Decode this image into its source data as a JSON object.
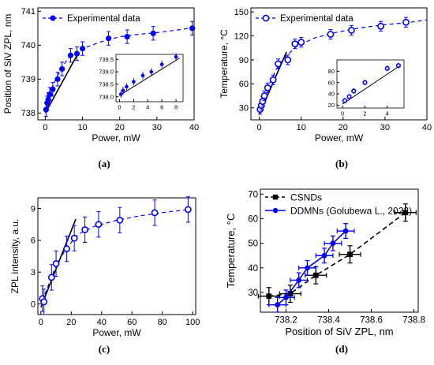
{
  "captions": {
    "a": "(a)",
    "b": "(b)",
    "c": "(c)",
    "d": "(d)"
  },
  "chart_data": [
    {
      "id": "a",
      "type": "scatter",
      "xlabel": "Power, mW",
      "ylabel": "Position of SiV ZPL, nm",
      "xlim": [
        -2,
        40
      ],
      "ylim": [
        737.8,
        741.1
      ],
      "xticks": [
        0,
        10,
        20,
        30,
        40
      ],
      "xtick_labels": [
        "0",
        "10",
        "20",
        "30",
        "40"
      ],
      "yticks": [
        738,
        739,
        740,
        741
      ],
      "ytick_labels": [
        "738",
        "739",
        "740",
        "741"
      ],
      "legend": {
        "label": "Experimental data",
        "position": "top-left"
      },
      "series": [
        {
          "name": "Experimental data",
          "color": "#0000ff",
          "marker": "filled-circle",
          "line": "dashed",
          "x": [
            0.2,
            0.5,
            0.8,
            1.2,
            2,
            3.3,
            4.5,
            6.8,
            8.5,
            10,
            17,
            22,
            29,
            39.5
          ],
          "y": [
            738.1,
            738.3,
            738.4,
            738.55,
            738.7,
            739.0,
            739.3,
            739.7,
            739.75,
            739.9,
            740.2,
            740.25,
            740.35,
            740.5
          ],
          "err": [
            0.2,
            0.2,
            0.2,
            0.2,
            0.2,
            0.2,
            0.2,
            0.2,
            0.2,
            0.2,
            0.2,
            0.2,
            0.2,
            0.2
          ]
        }
      ],
      "fit_line": {
        "color": "#000000",
        "x": [
          0,
          8.5
        ],
        "y": [
          738.0,
          739.7
        ]
      },
      "dashed_curve": {
        "x": [
          0.2,
          1,
          3,
          6,
          10,
          15,
          20,
          25,
          30,
          35,
          40
        ],
        "y": [
          738.1,
          738.5,
          739.05,
          739.6,
          739.9,
          740.1,
          740.25,
          740.32,
          740.37,
          740.44,
          740.52
        ]
      },
      "inset": {
        "xlim": [
          -0.5,
          9
        ],
        "ylim": [
          737.8,
          739.7
        ],
        "xticks": [
          0,
          2,
          4,
          6,
          8
        ],
        "xtick_labels": [
          "0",
          "2",
          "4",
          "6",
          "8"
        ],
        "yticks": [
          738.0,
          738.5,
          739.0,
          739.5
        ],
        "ytick_labels": [
          "738.0",
          "738.5",
          "739.0",
          "739.5"
        ],
        "x": [
          0.2,
          0.5,
          1,
          2,
          3.3,
          4.5,
          6,
          8
        ],
        "y": [
          738.1,
          738.25,
          738.4,
          738.6,
          738.85,
          739.0,
          739.3,
          739.6
        ],
        "err": [
          0.15,
          0.15,
          0.15,
          0.15,
          0.15,
          0.15,
          0.15,
          0.15
        ],
        "fit_line": {
          "x": [
            0,
            8.5
          ],
          "y": [
            738.05,
            739.55
          ]
        }
      }
    },
    {
      "id": "b",
      "type": "scatter",
      "xlabel": "Power, mW",
      "ylabel": "Temperature, °C",
      "xlim": [
        -2,
        40
      ],
      "ylim": [
        15,
        155
      ],
      "xticks": [
        0,
        10,
        20,
        30,
        40
      ],
      "xtick_labels": [
        "0",
        "10",
        "20",
        "30",
        "40"
      ],
      "yticks": [
        30,
        60,
        90,
        120,
        150
      ],
      "ytick_labels": [
        "30",
        "60",
        "90",
        "120",
        "150"
      ],
      "legend": {
        "label": "Experimental data",
        "position": "top-left"
      },
      "series": [
        {
          "name": "Experimental data",
          "color": "#0000ff",
          "marker": "open-circle",
          "line": "dashed",
          "x": [
            0.2,
            0.5,
            0.8,
            1.2,
            2,
            3.3,
            4.5,
            6.8,
            8.5,
            10,
            17,
            22,
            29,
            35
          ],
          "y": [
            28,
            33,
            38,
            45,
            55,
            65,
            85,
            90,
            110,
            112,
            122,
            127,
            132,
            137
          ],
          "err": [
            6,
            6,
            6,
            6,
            6,
            6,
            6,
            6,
            6,
            6,
            6,
            6,
            6,
            6
          ]
        }
      ],
      "fit_line": {
        "color": "#000000",
        "x": [
          0,
          6.5
        ],
        "y": [
          22,
          100
        ]
      },
      "dashed_curve": {
        "x": [
          0.2,
          2,
          4,
          6,
          9,
          13,
          18,
          24,
          30,
          36,
          40
        ],
        "y": [
          28,
          55,
          78,
          93,
          107,
          117,
          124,
          130,
          134,
          137,
          140
        ]
      },
      "inset": {
        "xlim": [
          -0.5,
          5.5
        ],
        "ylim": [
          15,
          100
        ],
        "xticks": [
          0,
          2,
          4
        ],
        "xtick_labels": [
          "0",
          "2",
          "4"
        ],
        "yticks": [
          20,
          40,
          60,
          80
        ],
        "ytick_labels": [
          "20",
          "40",
          "60",
          "80"
        ],
        "x": [
          0.2,
          0.6,
          1,
          2,
          4,
          5
        ],
        "y": [
          28,
          35,
          45,
          60,
          85,
          90
        ],
        "err": [
          5,
          5,
          5,
          5,
          5,
          5
        ],
        "fit_line": {
          "x": [
            0,
            5
          ],
          "y": [
            22,
            88
          ]
        }
      }
    },
    {
      "id": "c",
      "type": "scatter",
      "xlabel": "Power, mW",
      "ylabel": "ZPL intensity, a.u.",
      "xlim": [
        -2,
        102
      ],
      "ylim": [
        -1,
        10
      ],
      "xticks": [
        0,
        20,
        40,
        60,
        80,
        100
      ],
      "xtick_labels": [
        "0",
        "20",
        "40",
        "60",
        "80",
        "100"
      ],
      "yticks": [
        0,
        3,
        6,
        9
      ],
      "ytick_labels": [
        "0",
        "3",
        "6",
        "9"
      ],
      "series": [
        {
          "name": "",
          "color": "#0000ff",
          "marker": "open-circle",
          "line": "dashed",
          "x": [
            1,
            2,
            7,
            10,
            17,
            22,
            29,
            38,
            52,
            75,
            97
          ],
          "y": [
            0.5,
            0.2,
            2.5,
            3.8,
            5.2,
            6.2,
            7.0,
            7.5,
            7.9,
            8.6,
            8.9
          ],
          "err": [
            1.2,
            1.2,
            1.2,
            1.2,
            1.2,
            1.2,
            1.2,
            1.2,
            1.2,
            1.2,
            1.2
          ]
        }
      ],
      "fit_line": {
        "color": "#000000",
        "x": [
          0,
          23
        ],
        "y": [
          -0.3,
          8.0
        ]
      },
      "dashed_curve": {
        "x": [
          1,
          5,
          10,
          17,
          25,
          35,
          50,
          65,
          80,
          97
        ],
        "y": [
          0.3,
          1.8,
          3.6,
          5.3,
          6.6,
          7.3,
          7.9,
          8.3,
          8.6,
          8.9
        ]
      }
    },
    {
      "id": "d",
      "type": "scatter",
      "xlabel": "Position of SiV ZPL, nm",
      "ylabel": "Temperature, °C",
      "xlim": [
        738.08,
        738.82
      ],
      "ylim": [
        22,
        72
      ],
      "xticks": [
        738.2,
        738.4,
        738.6,
        738.8
      ],
      "xtick_labels": [
        "738.2",
        "738.4",
        "738.6",
        "738.8"
      ],
      "yticks": [
        30,
        40,
        50,
        60,
        70
      ],
      "ytick_labels": [
        "30",
        "40",
        "50",
        "60",
        "70"
      ],
      "legend": {
        "position": "top-left"
      },
      "series": [
        {
          "name": "CSNDs",
          "color": "#000000",
          "marker": "filled-square",
          "line": "dashed",
          "x": [
            738.12,
            738.22,
            738.34,
            738.5,
            738.76
          ],
          "y": [
            28.5,
            29.5,
            37,
            45.5,
            62.5
          ],
          "xerr": [
            0.05,
            0.05,
            0.05,
            0.05,
            0.05
          ],
          "yerr": [
            3.5,
            3.5,
            3.5,
            3.5,
            3.5
          ]
        },
        {
          "name": "DDMNs (Golubewa L., 2022)",
          "color": "#0000ff",
          "marker": "filled-circle",
          "line": "solid",
          "x": [
            738.16,
            738.2,
            738.26,
            738.3,
            738.38,
            738.42,
            738.48
          ],
          "y": [
            25,
            28,
            35,
            40,
            45,
            50,
            55
          ],
          "xerr": [
            0.04,
            0.04,
            0.04,
            0.04,
            0.04,
            0.04,
            0.04
          ],
          "yerr": [
            3,
            3,
            3,
            3,
            3,
            3,
            3
          ]
        }
      ]
    }
  ]
}
